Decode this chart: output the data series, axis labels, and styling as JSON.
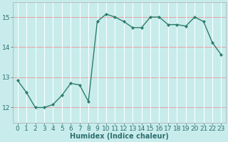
{
  "xlabel": "Humidex (Indice chaleur)",
  "x": [
    0,
    1,
    2,
    3,
    4,
    5,
    6,
    7,
    8,
    9,
    10,
    11,
    12,
    13,
    14,
    15,
    16,
    17,
    18,
    19,
    20,
    21,
    22,
    23
  ],
  "y": [
    12.9,
    12.5,
    12.0,
    12.0,
    12.1,
    12.4,
    12.8,
    12.75,
    12.2,
    14.85,
    15.1,
    15.0,
    14.85,
    14.65,
    14.65,
    15.0,
    15.0,
    14.75,
    14.75,
    14.7,
    15.0,
    14.85,
    14.15,
    13.75
  ],
  "line_color": "#2e7d6b",
  "marker": "D",
  "marker_size": 2.0,
  "background_color": "#c8ecec",
  "grid_color_h": "#e8a0a0",
  "grid_color_v": "#ffffff",
  "ylim": [
    11.5,
    15.5
  ],
  "yticks": [
    12,
    13,
    14,
    15
  ],
  "xlim": [
    -0.5,
    23.5
  ],
  "xticks": [
    0,
    1,
    2,
    3,
    4,
    5,
    6,
    7,
    8,
    9,
    10,
    11,
    12,
    13,
    14,
    15,
    16,
    17,
    18,
    19,
    20,
    21,
    22,
    23
  ],
  "xlabel_fontsize": 7,
  "tick_fontsize": 6.5,
  "line_width": 1.0,
  "text_color": "#2e6e6e"
}
